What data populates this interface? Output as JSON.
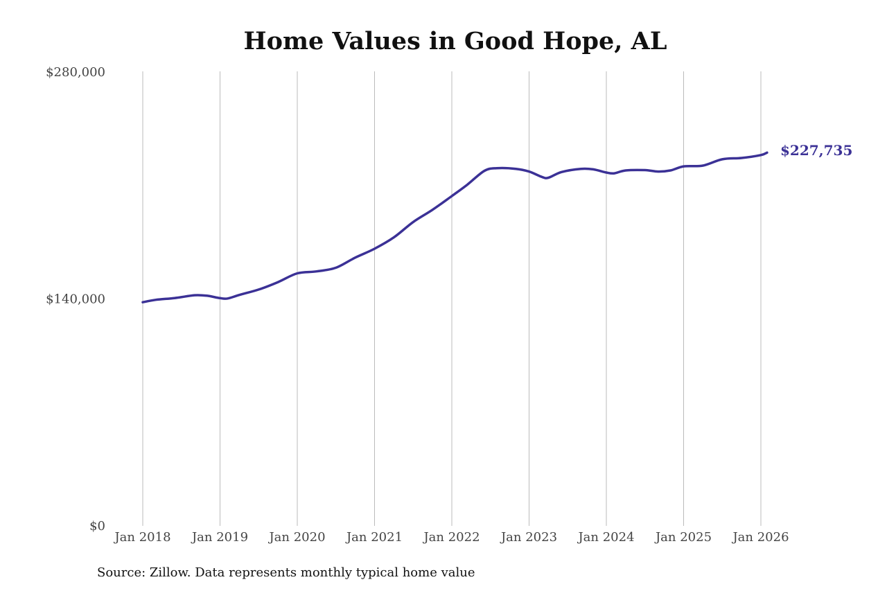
{
  "chart_data": {
    "type": "line",
    "title": "Home Values in Good Hope, AL",
    "xlabel": "",
    "ylabel": "",
    "ylim": [
      0,
      280000
    ],
    "y_ticks": [
      {
        "value": 0,
        "label": "$0"
      },
      {
        "value": 140000,
        "label": "$140,000"
      },
      {
        "value": 280000,
        "label": "$280,000"
      }
    ],
    "x_ticks": [
      {
        "value": 2018,
        "label": "Jan 2018"
      },
      {
        "value": 2019,
        "label": "Jan 2019"
      },
      {
        "value": 2020,
        "label": "Jan 2020"
      },
      {
        "value": 2021,
        "label": "Jan 2021"
      },
      {
        "value": 2022,
        "label": "Jan 2022"
      },
      {
        "value": 2023,
        "label": "Jan 2023"
      },
      {
        "value": 2024,
        "label": "Jan 2024"
      },
      {
        "value": 2025,
        "label": "Jan 2025"
      },
      {
        "value": 2026,
        "label": "Jan 2026"
      }
    ],
    "xlim": [
      2018,
      2026
    ],
    "grid": "vertical",
    "series": [
      {
        "color": "#3b3196",
        "points": [
          [
            2018.0,
            138000
          ],
          [
            2018.17,
            139500
          ],
          [
            2018.42,
            140600
          ],
          [
            2018.67,
            142300
          ],
          [
            2018.83,
            142000
          ],
          [
            2019.0,
            140500
          ],
          [
            2019.1,
            140300
          ],
          [
            2019.25,
            142500
          ],
          [
            2019.5,
            145800
          ],
          [
            2019.75,
            150400
          ],
          [
            2020.0,
            155800
          ],
          [
            2020.25,
            157000
          ],
          [
            2020.5,
            159300
          ],
          [
            2020.75,
            165500
          ],
          [
            2021.0,
            171000
          ],
          [
            2021.25,
            178000
          ],
          [
            2021.5,
            187500
          ],
          [
            2021.75,
            195000
          ],
          [
            2022.0,
            203500
          ],
          [
            2022.2,
            210500
          ],
          [
            2022.42,
            219000
          ],
          [
            2022.58,
            220700
          ],
          [
            2022.83,
            220300
          ],
          [
            2023.0,
            218600
          ],
          [
            2023.17,
            215200
          ],
          [
            2023.25,
            214800
          ],
          [
            2023.42,
            218300
          ],
          [
            2023.67,
            220300
          ],
          [
            2023.83,
            220000
          ],
          [
            2024.0,
            218000
          ],
          [
            2024.1,
            217500
          ],
          [
            2024.25,
            219300
          ],
          [
            2024.5,
            219500
          ],
          [
            2024.67,
            218600
          ],
          [
            2024.83,
            219300
          ],
          [
            2025.0,
            221800
          ],
          [
            2025.25,
            222300
          ],
          [
            2025.5,
            226200
          ],
          [
            2025.75,
            227000
          ],
          [
            2026.0,
            228800
          ],
          [
            2026.08,
            230300
          ]
        ]
      }
    ],
    "end_label": "$227,735"
  },
  "footer": {
    "source": "Source: Zillow. Data represents monthly typical home value"
  }
}
